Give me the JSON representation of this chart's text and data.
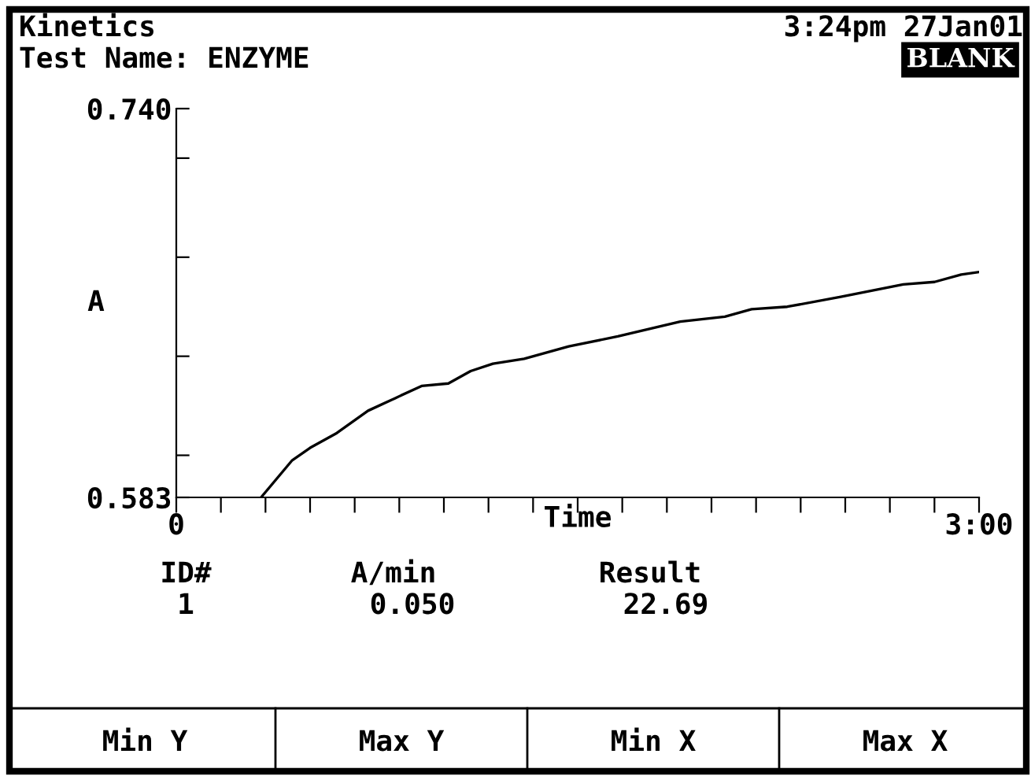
{
  "chart_data": {
    "type": "line",
    "title": "Kinetics",
    "subtitle": "Test Name: ENZYME",
    "xlabel": "Time",
    "ylabel": "A",
    "x": [
      19,
      26,
      30,
      36,
      43,
      49,
      55,
      61,
      66,
      71,
      78,
      88,
      99,
      113,
      123,
      129,
      137,
      149,
      163,
      170,
      176,
      180
    ],
    "series": [
      {
        "color": "#000000",
        "values": [
          0.583,
          0.598,
          0.603,
          0.609,
          0.618,
          0.623,
          0.628,
          0.629,
          0.634,
          0.637,
          0.639,
          0.644,
          0.648,
          0.654,
          0.656,
          0.659,
          0.66,
          0.664,
          0.669,
          0.67,
          0.673,
          0.674
        ]
      }
    ],
    "xlim": [
      0,
      180
    ],
    "ylim": [
      0.583,
      0.74
    ],
    "xticks": [
      {
        "value": 0,
        "label": "0"
      },
      {
        "value": 10,
        "label": null
      },
      {
        "value": 20,
        "label": null
      },
      {
        "value": 30,
        "label": null
      },
      {
        "value": 40,
        "label": null
      },
      {
        "value": 50,
        "label": null
      },
      {
        "value": 60,
        "label": null
      },
      {
        "value": 70,
        "label": null
      },
      {
        "value": 80,
        "label": null
      },
      {
        "value": 90,
        "label": null
      },
      {
        "value": 100,
        "label": null
      },
      {
        "value": 110,
        "label": null
      },
      {
        "value": 120,
        "label": null
      },
      {
        "value": 130,
        "label": null
      },
      {
        "value": 140,
        "label": null
      },
      {
        "value": 150,
        "label": null
      },
      {
        "value": 160,
        "label": null
      },
      {
        "value": 170,
        "label": null
      },
      {
        "value": 180,
        "label": "3:00"
      }
    ],
    "yticks": [
      0.583,
      {
        "value": 0.6,
        "label": null
      },
      {
        "value": 0.64,
        "label": null
      },
      {
        "value": 0.68,
        "label": null
      },
      {
        "value": 0.72,
        "label": null
      },
      {
        "value": 0.74,
        "label": "0.740"
      }
    ],
    "grid": false,
    "legend": false,
    "marker": "none",
    "line_style": "solid",
    "annotations": [
      "3:24pm 27Jan01",
      "BLANK",
      "ID#",
      "A/min",
      "Result",
      "1",
      "0.050",
      "22.69",
      "Min Y",
      "Max Y",
      "Min X",
      "Max X"
    ]
  }
}
